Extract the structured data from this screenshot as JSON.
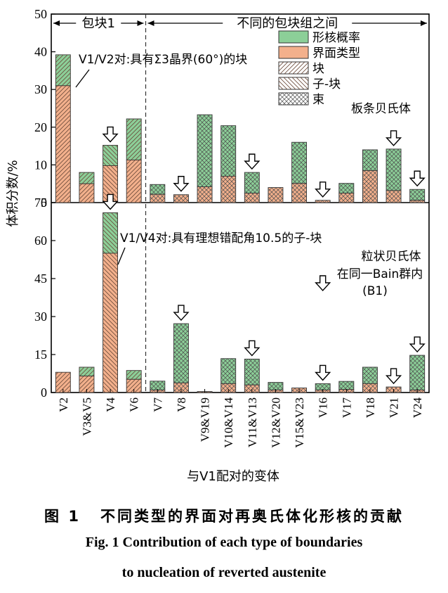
{
  "chart_data": {
    "type": "bar",
    "stacked": true,
    "xlabel": "与V1配对的变体",
    "ylabel": "体积分数/%",
    "categories": [
      "V2",
      "V3&V5",
      "V4",
      "V6",
      "V7",
      "V8",
      "V9&V19",
      "V10&V14",
      "V11&V13",
      "V12&V20",
      "V15&V23",
      "V16",
      "V17",
      "V18",
      "V21",
      "V24"
    ],
    "region_labels": {
      "left": "包块1",
      "right": "不同的包块组之间"
    },
    "legend": {
      "items": [
        {
          "key": "nucleation",
          "label": "形核概率",
          "color": "#8ccf98"
        },
        {
          "key": "interface",
          "label": "界面类型",
          "color": "#f3b08c"
        },
        {
          "key": "block",
          "label": "块",
          "pattern": "diagonal"
        },
        {
          "key": "subblock",
          "label": "子-块",
          "pattern": "backdiagonal"
        },
        {
          "key": "packet",
          "label": "束",
          "pattern": "cross"
        }
      ]
    },
    "panels": [
      {
        "name": "板条贝氏体",
        "ylim": [
          0,
          50
        ],
        "yticks": [
          "0",
          "10",
          "20",
          "30",
          "40",
          "50"
        ],
        "annotation": "V1/V2对:具有Σ3晶界(60°)的块",
        "interface_values": [
          31,
          5,
          9.8,
          11.3,
          2.2,
          2.1,
          4.2,
          7,
          2.5,
          4,
          5.1,
          0.6,
          2.5,
          8.5,
          3.2,
          0.6
        ],
        "total_values": [
          39.2,
          8,
          15.2,
          22.2,
          4.8,
          2.1,
          23.3,
          20.4,
          8,
          4,
          16,
          0.6,
          5.1,
          14,
          14.2,
          3.5
        ],
        "patterns": [
          "diagonal",
          "diagonal",
          "backdiagonal",
          "diagonal",
          "cross",
          "cross",
          "cross",
          "cross",
          "cross",
          "cross",
          "cross",
          "cross",
          "cross",
          "cross",
          "cross",
          "cross"
        ],
        "arrows": [
          "V4",
          "V8",
          "V11&V13",
          "V16",
          "V21",
          "V24"
        ]
      },
      {
        "name": "粒状贝氏体",
        "subtitle": "在同一Bain群内",
        "subtitle2": "(B1)",
        "ylim": [
          0,
          75
        ],
        "yticks": [
          "0",
          "15",
          "30",
          "45",
          "60",
          "75"
        ],
        "annotation": "V1/V4对:具有理想错配角10.5的子-块",
        "interface_values": [
          8,
          6.5,
          55,
          5.2,
          1,
          3.8,
          0.4,
          3.5,
          3,
          1,
          1.8,
          1,
          1.2,
          3.5,
          2.2,
          1
        ],
        "total_values": [
          8,
          10,
          71,
          8.7,
          4.5,
          27.2,
          0.4,
          13.4,
          13.2,
          4,
          1.8,
          3.5,
          4.4,
          10,
          2.2,
          14.7
        ],
        "patterns": [
          "diagonal",
          "diagonal",
          "backdiagonal",
          "diagonal",
          "cross",
          "cross",
          "cross",
          "cross",
          "cross",
          "cross",
          "cross",
          "cross",
          "cross",
          "cross",
          "cross",
          "cross"
        ],
        "arrows": [
          "V4",
          "V8",
          "V11&V13",
          "V16",
          "V21",
          "V24",
          "B1"
        ]
      }
    ]
  },
  "caption": {
    "zh_num": "图 1",
    "zh_text": "不同类型的界面对再奥氏体化形核的贡献",
    "en_line1": "Fig. 1    Contribution of each type of boundaries",
    "en_line2": "to nucleation of reverted austenite"
  }
}
